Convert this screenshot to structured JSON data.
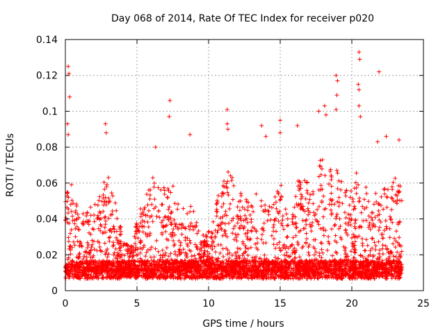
{
  "chart_data": {
    "type": "scatter",
    "title": "Day 068 of 2014, Rate Of TEC Index for receiver p020",
    "xlabel": "GPS time / hours",
    "ylabel": "ROTI / TECUs",
    "xlim": [
      0,
      25
    ],
    "ylim": [
      0,
      0.14
    ],
    "xticks": [
      0,
      5,
      10,
      15,
      20,
      25
    ],
    "yticks": [
      0,
      0.02,
      0.04,
      0.06,
      0.08,
      0.1,
      0.12,
      0.14
    ],
    "xtick_labels": [
      "0",
      "5",
      "10",
      "15",
      "20",
      "25"
    ],
    "ytick_labels": [
      "0",
      "0.02",
      "0.04",
      "0.06",
      "0.08",
      "0.1",
      "0.12",
      "0.14"
    ],
    "grid": true,
    "marker": "+",
    "series_color": "#ff0000",
    "data_extent_hours": [
      0,
      23.5
    ],
    "baseline_typical": 0.012,
    "peaks": [
      {
        "x": 0.2,
        "y": 0.125
      },
      {
        "x": 0.25,
        "y": 0.121
      },
      {
        "x": 0.3,
        "y": 0.108
      },
      {
        "x": 0.15,
        "y": 0.093
      },
      {
        "x": 0.2,
        "y": 0.087
      },
      {
        "x": 2.8,
        "y": 0.093
      },
      {
        "x": 2.85,
        "y": 0.088
      },
      {
        "x": 6.3,
        "y": 0.08
      },
      {
        "x": 7.3,
        "y": 0.106
      },
      {
        "x": 7.25,
        "y": 0.097
      },
      {
        "x": 8.7,
        "y": 0.087
      },
      {
        "x": 11.3,
        "y": 0.101
      },
      {
        "x": 11.3,
        "y": 0.093
      },
      {
        "x": 11.35,
        "y": 0.09
      },
      {
        "x": 13.7,
        "y": 0.092
      },
      {
        "x": 14.0,
        "y": 0.086
      },
      {
        "x": 15.0,
        "y": 0.095
      },
      {
        "x": 15.0,
        "y": 0.088
      },
      {
        "x": 16.2,
        "y": 0.092
      },
      {
        "x": 17.7,
        "y": 0.1
      },
      {
        "x": 18.1,
        "y": 0.103
      },
      {
        "x": 18.2,
        "y": 0.098
      },
      {
        "x": 18.9,
        "y": 0.12
      },
      {
        "x": 19.0,
        "y": 0.117
      },
      {
        "x": 18.95,
        "y": 0.109
      },
      {
        "x": 18.9,
        "y": 0.101
      },
      {
        "x": 20.5,
        "y": 0.133
      },
      {
        "x": 20.55,
        "y": 0.129
      },
      {
        "x": 20.45,
        "y": 0.115
      },
      {
        "x": 20.5,
        "y": 0.112
      },
      {
        "x": 20.5,
        "y": 0.103
      },
      {
        "x": 20.6,
        "y": 0.097
      },
      {
        "x": 21.9,
        "y": 0.122
      },
      {
        "x": 22.4,
        "y": 0.086
      },
      {
        "x": 21.8,
        "y": 0.083
      },
      {
        "x": 23.3,
        "y": 0.084
      }
    ],
    "activity_envelope": [
      {
        "x": 0,
        "y": 0.06
      },
      {
        "x": 0.5,
        "y": 0.06
      },
      {
        "x": 1,
        "y": 0.042
      },
      {
        "x": 1.5,
        "y": 0.045
      },
      {
        "x": 2,
        "y": 0.05
      },
      {
        "x": 2.5,
        "y": 0.06
      },
      {
        "x": 3,
        "y": 0.065
      },
      {
        "x": 3.5,
        "y": 0.055
      },
      {
        "x": 4,
        "y": 0.03
      },
      {
        "x": 4.5,
        "y": 0.025
      },
      {
        "x": 5,
        "y": 0.04
      },
      {
        "x": 5.5,
        "y": 0.055
      },
      {
        "x": 6,
        "y": 0.065
      },
      {
        "x": 6.5,
        "y": 0.06
      },
      {
        "x": 7,
        "y": 0.058
      },
      {
        "x": 7.5,
        "y": 0.062
      },
      {
        "x": 8,
        "y": 0.045
      },
      {
        "x": 8.5,
        "y": 0.05
      },
      {
        "x": 9,
        "y": 0.045
      },
      {
        "x": 9.5,
        "y": 0.03
      },
      {
        "x": 10,
        "y": 0.035
      },
      {
        "x": 10.5,
        "y": 0.05
      },
      {
        "x": 11,
        "y": 0.062
      },
      {
        "x": 11.5,
        "y": 0.068
      },
      {
        "x": 12,
        "y": 0.06
      },
      {
        "x": 12.5,
        "y": 0.052
      },
      {
        "x": 13,
        "y": 0.05
      },
      {
        "x": 13.5,
        "y": 0.06
      },
      {
        "x": 14,
        "y": 0.05
      },
      {
        "x": 14.5,
        "y": 0.052
      },
      {
        "x": 15,
        "y": 0.062
      },
      {
        "x": 15.5,
        "y": 0.045
      },
      {
        "x": 16,
        "y": 0.055
      },
      {
        "x": 16.5,
        "y": 0.068
      },
      {
        "x": 17,
        "y": 0.062
      },
      {
        "x": 17.5,
        "y": 0.072
      },
      {
        "x": 18,
        "y": 0.075
      },
      {
        "x": 18.5,
        "y": 0.07
      },
      {
        "x": 19,
        "y": 0.072
      },
      {
        "x": 19.5,
        "y": 0.06
      },
      {
        "x": 20,
        "y": 0.062
      },
      {
        "x": 20.5,
        "y": 0.072
      },
      {
        "x": 21,
        "y": 0.06
      },
      {
        "x": 21.5,
        "y": 0.055
      },
      {
        "x": 22,
        "y": 0.06
      },
      {
        "x": 22.5,
        "y": 0.058
      },
      {
        "x": 23,
        "y": 0.065
      },
      {
        "x": 23.5,
        "y": 0.062
      }
    ]
  }
}
